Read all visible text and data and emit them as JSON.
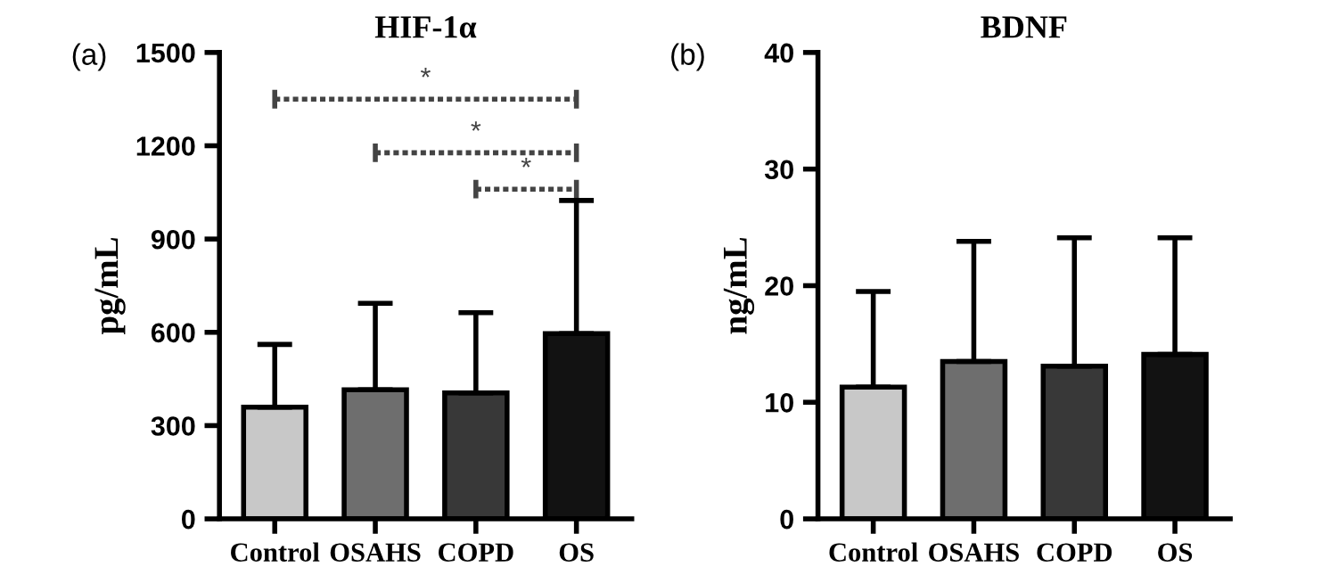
{
  "chart_data": [
    {
      "type": "bar",
      "title": "HIF-1α",
      "ylabel": "pg/mL",
      "categories": [
        "Control",
        "OSAHS",
        "COPD",
        "OS"
      ],
      "values": [
        359,
        415,
        405,
        596
      ],
      "errors": [
        [
          359,
          561
        ],
        [
          415,
          693
        ],
        [
          405,
          663
        ],
        [
          596,
          1024
        ]
      ],
      "colors": [
        "#c8c8c8",
        "#6e6e6e",
        "#383838",
        "#121212"
      ],
      "ylim": [
        0,
        1500
      ],
      "yticks": [
        0,
        300,
        600,
        900,
        1200,
        1500
      ],
      "grid": false,
      "annotations": [
        "(a)",
        "*",
        "*",
        "*"
      ]
    },
    {
      "type": "bar",
      "title": "BDNF",
      "ylabel": "ng/mL",
      "categories": [
        "Control",
        "OSAHS",
        "COPD",
        "OS"
      ],
      "values": [
        11.3,
        13.5,
        13.1,
        14.1
      ],
      "errors": [
        [
          11.3,
          19.5
        ],
        [
          13.5,
          23.8
        ],
        [
          13.1,
          24.1
        ],
        [
          14.1,
          24.1
        ]
      ],
      "colors": [
        "#c8c8c8",
        "#6e6e6e",
        "#383838",
        "#121212"
      ],
      "ylim": [
        0,
        40
      ],
      "yticks": [
        0,
        10,
        20,
        30,
        40
      ],
      "grid": false,
      "annotations": [
        "(b)"
      ]
    }
  ]
}
